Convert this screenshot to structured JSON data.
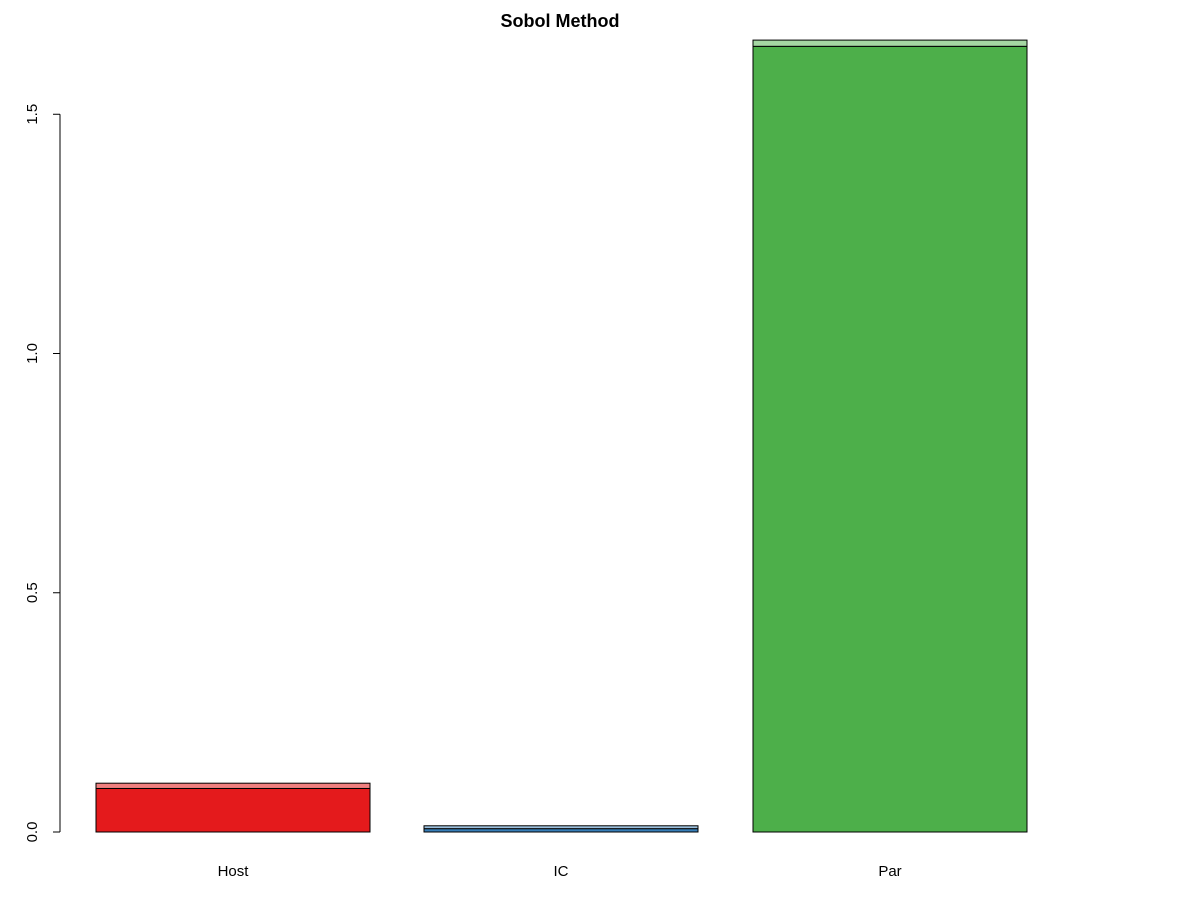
{
  "chart_data": {
    "type": "bar",
    "stacked": true,
    "title": "Sobol Method",
    "categories": [
      "Host",
      "IC",
      "Par"
    ],
    "series": [
      {
        "values": [
          0.091,
          0.007,
          1.642
        ]
      },
      {
        "values": [
          0.011,
          0.006,
          0.013
        ]
      }
    ],
    "colors": {
      "main": [
        "#e41a1c",
        "#377eb8",
        "#4daf4a"
      ],
      "top": [
        "#f08080",
        "#9cbfdc",
        "#a5d7a3"
      ]
    },
    "yticks": [
      "0.0",
      "0.5",
      "1.0",
      "1.5"
    ],
    "ylim": [
      0,
      1.6552
    ],
    "grid": false,
    "legend": "none"
  }
}
